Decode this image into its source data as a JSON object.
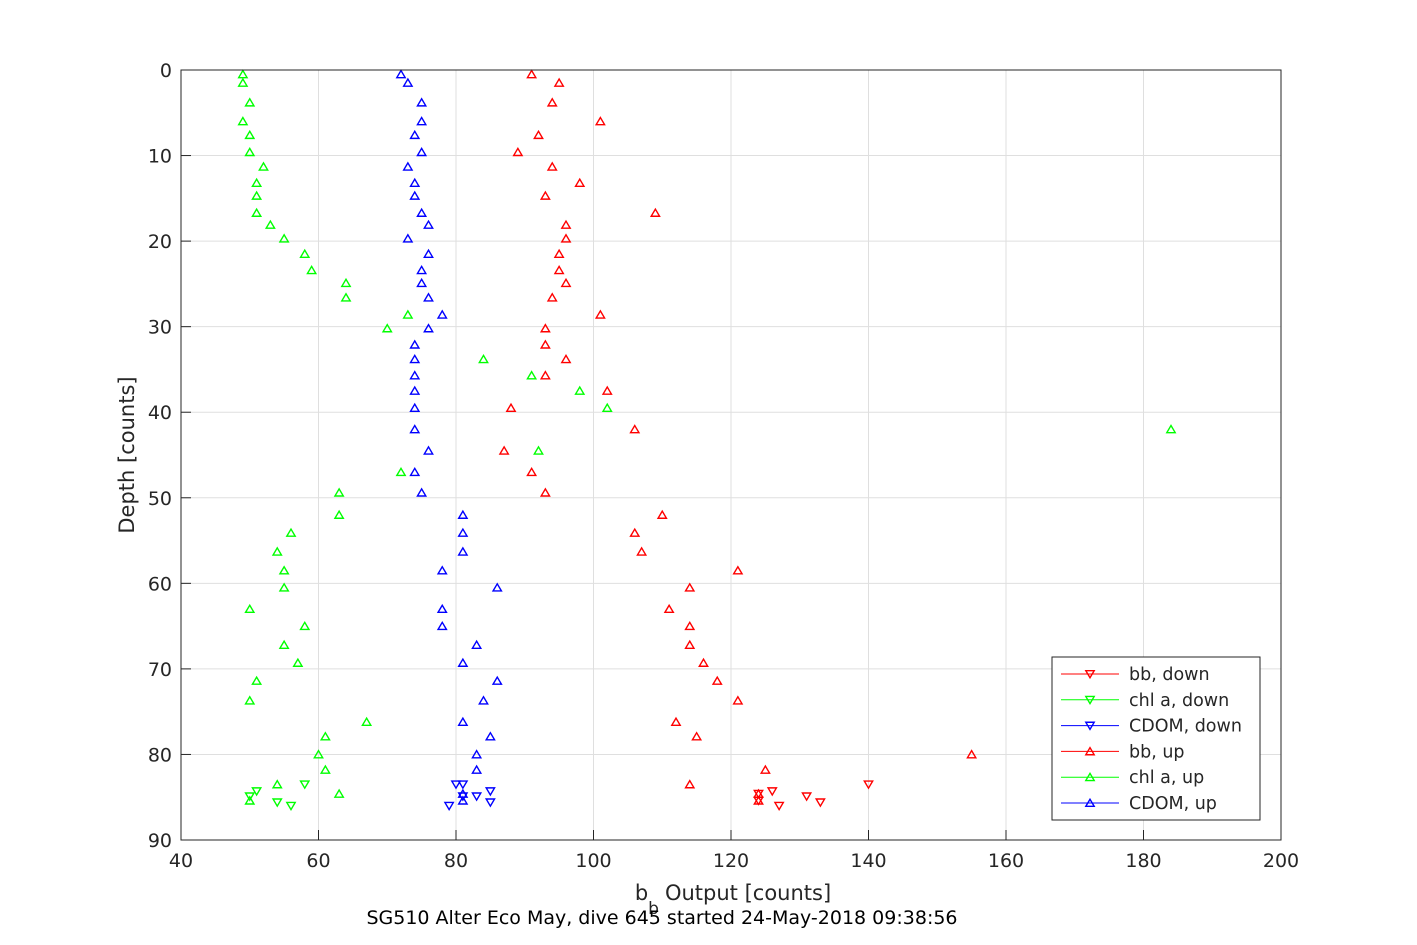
{
  "chart_data": {
    "type": "scatter",
    "xlabel": "Output [counts]",
    "xlabel_symbol": "b",
    "xlabel_subscript": "b",
    "ylabel": "Depth [counts]",
    "caption": "SG510 Alter Eco May, dive 645 started 24-May-2018 09:38:56",
    "xlim": [
      40,
      200
    ],
    "ylim": [
      0,
      90
    ],
    "y_reversed": true,
    "x_ticks": [
      40,
      60,
      80,
      100,
      120,
      140,
      160,
      180,
      200
    ],
    "y_ticks": [
      0,
      10,
      20,
      30,
      40,
      50,
      60,
      70,
      80,
      90
    ],
    "grid": true,
    "legend_placement": "bottom-right",
    "series": [
      {
        "name": "bb, down",
        "color": "#ff0000",
        "marker": "triangle-down",
        "points": [
          [
            140,
            83.5
          ],
          [
            126,
            84.3
          ],
          [
            124,
            84.6
          ],
          [
            131,
            84.9
          ],
          [
            124,
            85.4
          ],
          [
            133,
            85.6
          ],
          [
            127,
            86.0
          ]
        ]
      },
      {
        "name": "chl a, down",
        "color": "#00ff00",
        "marker": "triangle-down",
        "points": [
          [
            58,
            83.5
          ],
          [
            51,
            84.3
          ],
          [
            50,
            84.9
          ],
          [
            54,
            85.6
          ],
          [
            56,
            86.0
          ]
        ]
      },
      {
        "name": "CDOM, down",
        "color": "#0000ff",
        "marker": "triangle-down",
        "points": [
          [
            80,
            83.5
          ],
          [
            81,
            83.5
          ],
          [
            85,
            84.3
          ],
          [
            83,
            84.9
          ],
          [
            81,
            84.9
          ],
          [
            85,
            85.6
          ],
          [
            79,
            86.0
          ]
        ]
      },
      {
        "name": "bb, up",
        "color": "#ff0000",
        "marker": "triangle-up",
        "points": [
          [
            91,
            0.5
          ],
          [
            95,
            1.5
          ],
          [
            94,
            3.8
          ],
          [
            101,
            6.0
          ],
          [
            92,
            7.6
          ],
          [
            89,
            9.6
          ],
          [
            94,
            11.3
          ],
          [
            98,
            13.2
          ],
          [
            93,
            14.7
          ],
          [
            109,
            16.7
          ],
          [
            96,
            18.1
          ],
          [
            96,
            19.7
          ],
          [
            95,
            21.5
          ],
          [
            95,
            23.4
          ],
          [
            96,
            24.9
          ],
          [
            94,
            26.6
          ],
          [
            101,
            28.6
          ],
          [
            93,
            30.2
          ],
          [
            93,
            32.1
          ],
          [
            96,
            33.8
          ],
          [
            93,
            35.7
          ],
          [
            102,
            37.5
          ],
          [
            88,
            39.5
          ],
          [
            106,
            42.0
          ],
          [
            87,
            44.5
          ],
          [
            91,
            47.0
          ],
          [
            93,
            49.4
          ],
          [
            110,
            52.0
          ],
          [
            106,
            54.1
          ],
          [
            107,
            56.3
          ],
          [
            121,
            58.5
          ],
          [
            114,
            60.5
          ],
          [
            111,
            63.0
          ],
          [
            114,
            65.0
          ],
          [
            114,
            67.2
          ],
          [
            116,
            69.3
          ],
          [
            118,
            71.4
          ],
          [
            121,
            73.7
          ],
          [
            112,
            76.2
          ],
          [
            115,
            77.9
          ],
          [
            155,
            80.0
          ],
          [
            125,
            81.8
          ],
          [
            114,
            83.5
          ],
          [
            124,
            84.6
          ],
          [
            124,
            85.4
          ]
        ]
      },
      {
        "name": "chl a, up",
        "color": "#00ff00",
        "marker": "triangle-up",
        "points": [
          [
            49,
            0.5
          ],
          [
            49,
            1.5
          ],
          [
            50,
            3.8
          ],
          [
            49,
            6.0
          ],
          [
            50,
            7.6
          ],
          [
            50,
            9.6
          ],
          [
            52,
            11.3
          ],
          [
            51,
            13.2
          ],
          [
            51,
            14.7
          ],
          [
            51,
            16.7
          ],
          [
            53,
            18.1
          ],
          [
            55,
            19.7
          ],
          [
            58,
            21.5
          ],
          [
            59,
            23.4
          ],
          [
            64,
            24.9
          ],
          [
            64,
            26.6
          ],
          [
            73,
            28.6
          ],
          [
            70,
            30.2
          ],
          [
            84,
            33.8
          ],
          [
            91,
            35.7
          ],
          [
            98,
            37.5
          ],
          [
            102,
            39.5
          ],
          [
            184,
            42.0
          ],
          [
            92,
            44.5
          ],
          [
            72,
            47.0
          ],
          [
            63,
            49.4
          ],
          [
            63,
            52.0
          ],
          [
            56,
            54.1
          ],
          [
            54,
            56.3
          ],
          [
            55,
            58.5
          ],
          [
            55,
            60.5
          ],
          [
            50,
            63.0
          ],
          [
            58,
            65.0
          ],
          [
            55,
            67.2
          ],
          [
            57,
            69.3
          ],
          [
            51,
            71.4
          ],
          [
            50,
            73.7
          ],
          [
            67,
            76.2
          ],
          [
            61,
            77.9
          ],
          [
            60,
            80.0
          ],
          [
            61,
            81.8
          ],
          [
            54,
            83.5
          ],
          [
            63,
            84.6
          ],
          [
            50,
            85.4
          ]
        ]
      },
      {
        "name": "CDOM, up",
        "color": "#0000ff",
        "marker": "triangle-up",
        "points": [
          [
            72,
            0.5
          ],
          [
            73,
            1.5
          ],
          [
            75,
            3.8
          ],
          [
            75,
            6.0
          ],
          [
            74,
            7.6
          ],
          [
            75,
            9.6
          ],
          [
            73,
            11.3
          ],
          [
            74,
            13.2
          ],
          [
            74,
            14.7
          ],
          [
            75,
            16.7
          ],
          [
            76,
            18.1
          ],
          [
            73,
            19.7
          ],
          [
            76,
            21.5
          ],
          [
            75,
            23.4
          ],
          [
            75,
            24.9
          ],
          [
            76,
            26.6
          ],
          [
            78,
            28.6
          ],
          [
            76,
            30.2
          ],
          [
            74,
            32.1
          ],
          [
            74,
            33.8
          ],
          [
            74,
            35.7
          ],
          [
            74,
            37.5
          ],
          [
            74,
            39.5
          ],
          [
            74,
            42.0
          ],
          [
            76,
            44.5
          ],
          [
            74,
            47.0
          ],
          [
            75,
            49.4
          ],
          [
            81,
            52.0
          ],
          [
            81,
            54.1
          ],
          [
            81,
            56.3
          ],
          [
            78,
            58.5
          ],
          [
            86,
            60.5
          ],
          [
            78,
            63.0
          ],
          [
            78,
            65.0
          ],
          [
            83,
            67.2
          ],
          [
            81,
            69.3
          ],
          [
            86,
            71.4
          ],
          [
            84,
            73.7
          ],
          [
            81,
            76.2
          ],
          [
            85,
            77.9
          ],
          [
            83,
            80.0
          ],
          [
            83,
            81.8
          ],
          [
            81,
            84.6
          ],
          [
            81,
            85.4
          ]
        ]
      }
    ]
  }
}
